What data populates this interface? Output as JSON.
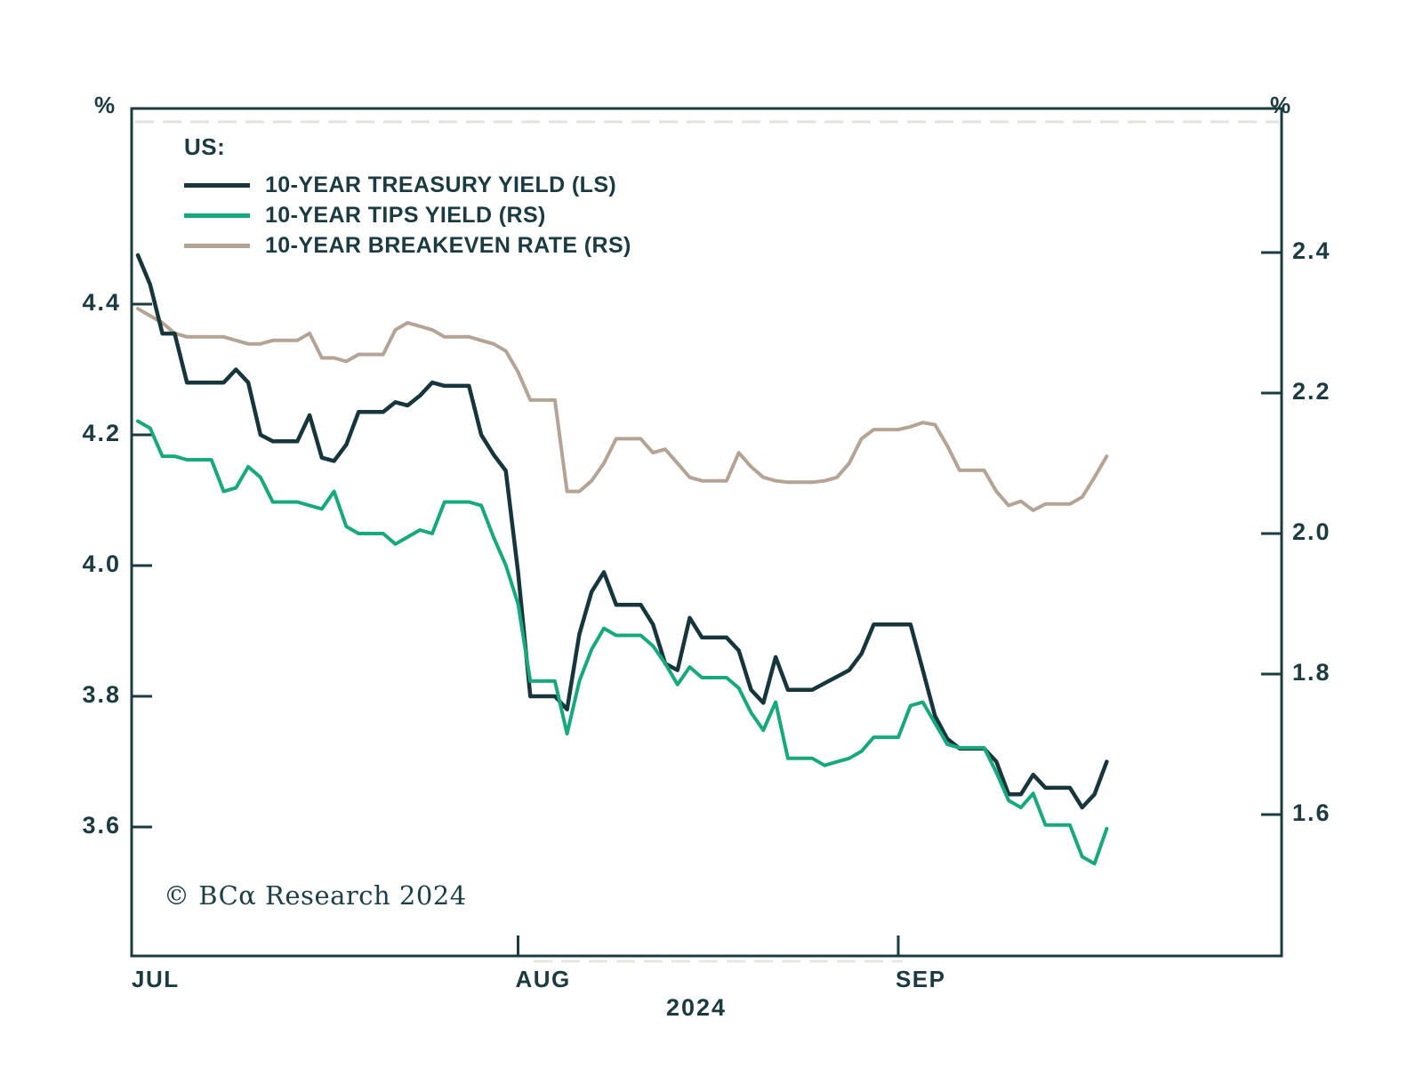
{
  "axis_units": {
    "left": "%",
    "right": "%"
  },
  "legend": {
    "title": "US:",
    "items": [
      {
        "label": "10-YEAR TREASURY YIELD (LS)",
        "color": "#16363c"
      },
      {
        "label": "10-YEAR TIPS YIELD (RS)",
        "color": "#17a87d"
      },
      {
        "label": "10-YEAR BREAKEVEN RATE (RS)",
        "color": "#b3a496"
      }
    ]
  },
  "copyright": "© BCα Research 2024",
  "x_axis": {
    "year_label": "2024"
  },
  "chart_data": {
    "type": "line",
    "title": "",
    "xlabel": "2024",
    "ylabel_left": "%",
    "ylabel_right": "%",
    "grid": false,
    "legend_position": "top-left",
    "left_axis": {
      "ticks": [
        4.4,
        4.2,
        4.0,
        3.8,
        3.6
      ],
      "range": [
        3.42,
        4.7
      ]
    },
    "right_axis": {
      "ticks": [
        2.4,
        2.2,
        2.0,
        1.8,
        1.6
      ],
      "range": [
        1.42,
        2.6
      ]
    },
    "x_ticks": [
      {
        "label": "JUL",
        "date": "2024-07-01"
      },
      {
        "label": "AUG",
        "date": "2024-08-01"
      },
      {
        "label": "SEP",
        "date": "2024-09-01"
      }
    ],
    "x": [
      "2024-07-01",
      "2024-07-02",
      "2024-07-03",
      "2024-07-04",
      "2024-07-05",
      "2024-07-08",
      "2024-07-09",
      "2024-07-10",
      "2024-07-11",
      "2024-07-12",
      "2024-07-15",
      "2024-07-16",
      "2024-07-17",
      "2024-07-18",
      "2024-07-19",
      "2024-07-22",
      "2024-07-23",
      "2024-07-24",
      "2024-07-25",
      "2024-07-26",
      "2024-07-29",
      "2024-07-30",
      "2024-07-31",
      "2024-08-01",
      "2024-08-02",
      "2024-08-05",
      "2024-08-06",
      "2024-08-07",
      "2024-08-08",
      "2024-08-09",
      "2024-08-12",
      "2024-08-13",
      "2024-08-14",
      "2024-08-15",
      "2024-08-16",
      "2024-08-19",
      "2024-08-20",
      "2024-08-21",
      "2024-08-22",
      "2024-08-23",
      "2024-08-26",
      "2024-08-27",
      "2024-08-28",
      "2024-08-29",
      "2024-08-30",
      "2024-09-02",
      "2024-09-03",
      "2024-09-04",
      "2024-09-05",
      "2024-09-06",
      "2024-09-09",
      "2024-09-10",
      "2024-09-11",
      "2024-09-12",
      "2024-09-13",
      "2024-09-16",
      "2024-09-17",
      "2024-09-18"
    ],
    "series": [
      {
        "name": "10-YEAR TREASURY YIELD (LS)",
        "axis": "left",
        "color": "#16363c",
        "values": [
          4.475,
          4.43,
          4.355,
          4.355,
          4.28,
          4.28,
          4.3,
          4.28,
          4.2,
          4.19,
          4.23,
          4.165,
          4.16,
          4.185,
          4.235,
          4.25,
          4.245,
          4.26,
          4.28,
          4.275,
          4.2,
          4.17,
          4.145,
          3.99,
          3.8,
          3.78,
          3.895,
          3.96,
          3.99,
          3.94,
          3.91,
          3.85,
          3.84,
          3.92,
          3.89,
          3.87,
          3.81,
          3.79,
          3.86,
          3.81,
          3.82,
          3.83,
          3.84,
          3.865,
          3.91,
          3.91,
          3.84,
          3.77,
          3.735,
          3.72,
          3.7,
          3.65,
          3.65,
          3.68,
          3.66,
          3.63,
          3.65,
          3.7
        ]
      },
      {
        "name": "10-YEAR TIPS YIELD (RS)",
        "axis": "right",
        "color": "#17a87d",
        "values": [
          2.16,
          2.15,
          2.11,
          2.11,
          2.105,
          2.06,
          2.065,
          2.095,
          2.08,
          2.045,
          2.04,
          2.035,
          2.06,
          2.01,
          2.0,
          1.985,
          1.995,
          2.005,
          2.0,
          2.045,
          2.04,
          1.995,
          1.955,
          1.9,
          1.79,
          1.715,
          1.79,
          1.835,
          1.865,
          1.855,
          1.84,
          1.815,
          1.785,
          1.81,
          1.795,
          1.78,
          1.745,
          1.72,
          1.76,
          1.68,
          1.67,
          1.675,
          1.68,
          1.69,
          1.71,
          1.755,
          1.76,
          1.73,
          1.7,
          1.695,
          1.66,
          1.62,
          1.61,
          1.63,
          1.585,
          1.54,
          1.53,
          1.58
        ]
      },
      {
        "name": "10-YEAR BREAKEVEN RATE (RS)",
        "axis": "right",
        "color": "#b3a496",
        "values": [
          2.32,
          2.31,
          2.3,
          2.285,
          2.28,
          2.28,
          2.275,
          2.27,
          2.27,
          2.275,
          2.285,
          2.25,
          2.25,
          2.245,
          2.255,
          2.29,
          2.3,
          2.295,
          2.29,
          2.28,
          2.275,
          2.27,
          2.26,
          2.23,
          2.19,
          2.06,
          2.06,
          2.075,
          2.1,
          2.135,
          2.115,
          2.12,
          2.1,
          2.08,
          2.075,
          2.115,
          2.095,
          2.08,
          2.075,
          2.073,
          2.075,
          2.08,
          2.1,
          2.135,
          2.148,
          2.152,
          2.158,
          2.155,
          2.125,
          2.09,
          2.06,
          2.04,
          2.046,
          2.033,
          2.042,
          2.052,
          2.08,
          2.11
        ]
      }
    ]
  }
}
